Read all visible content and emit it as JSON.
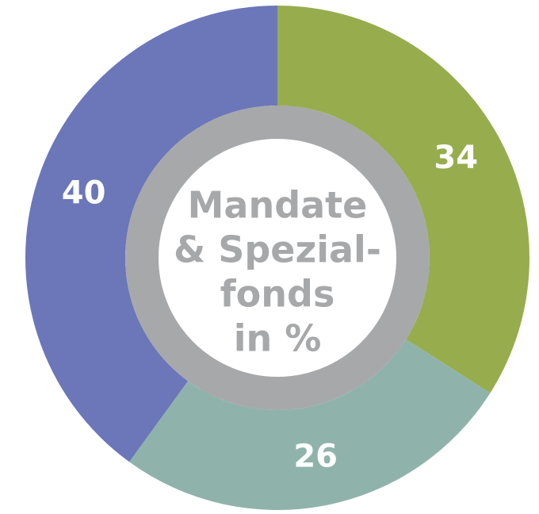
{
  "chart_data": {
    "type": "donut",
    "title": [
      "Mandate",
      "& Spezial-",
      "fonds",
      "in %"
    ],
    "categories": [
      null,
      null,
      null
    ],
    "values": [
      34,
      26,
      40
    ],
    "colors": [
      "#97ad4d",
      "#8fb3ab",
      "#6b77b8"
    ],
    "ring_color": "#a7a8aa"
  }
}
